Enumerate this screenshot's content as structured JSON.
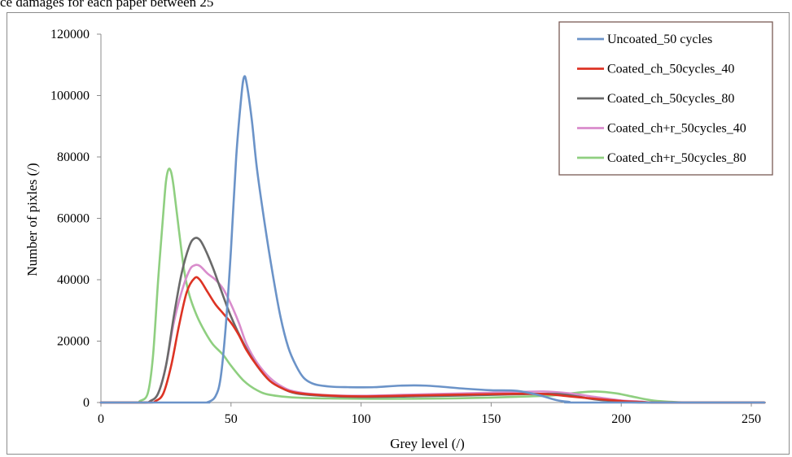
{
  "caption": "ce damages for each paper between 25",
  "chart_data": {
    "type": "line",
    "xlabel": "Grey level (/)",
    "ylabel": "Number of pixles (/)",
    "xlim": [
      0,
      255
    ],
    "ylim": [
      0,
      120000
    ],
    "xticks": [
      "0",
      "50",
      "100",
      "150",
      "200",
      "250"
    ],
    "yticks": [
      "0",
      "20000",
      "40000",
      "60000",
      "80000",
      "100000",
      "120000"
    ],
    "grid": false,
    "legend_position": "top-right",
    "series": [
      {
        "name": "Uncoated_50 cycles",
        "color": "#6b93c8",
        "points": [
          [
            0,
            0
          ],
          [
            38,
            0
          ],
          [
            41,
            100
          ],
          [
            44,
            2000
          ],
          [
            46,
            8000
          ],
          [
            48,
            25000
          ],
          [
            50,
            50000
          ],
          [
            52,
            80000
          ],
          [
            54,
            100000
          ],
          [
            55,
            106000
          ],
          [
            56,
            104000
          ],
          [
            58,
            92000
          ],
          [
            60,
            76000
          ],
          [
            63,
            58000
          ],
          [
            66,
            42000
          ],
          [
            69,
            28000
          ],
          [
            72,
            18000
          ],
          [
            75,
            12000
          ],
          [
            78,
            8000
          ],
          [
            82,
            6000
          ],
          [
            88,
            5200
          ],
          [
            95,
            5000
          ],
          [
            105,
            5000
          ],
          [
            115,
            5500
          ],
          [
            125,
            5500
          ],
          [
            140,
            4500
          ],
          [
            150,
            4000
          ],
          [
            160,
            3800
          ],
          [
            168,
            2500
          ],
          [
            175,
            800
          ],
          [
            180,
            200
          ],
          [
            185,
            0
          ],
          [
            255,
            0
          ]
        ]
      },
      {
        "name": "Coated_ch_50cycles_40",
        "color": "#dd3324",
        "points": [
          [
            0,
            0
          ],
          [
            18,
            0
          ],
          [
            21,
            500
          ],
          [
            24,
            3000
          ],
          [
            27,
            12000
          ],
          [
            30,
            25000
          ],
          [
            33,
            36000
          ],
          [
            36,
            40500
          ],
          [
            38,
            40000
          ],
          [
            41,
            36000
          ],
          [
            44,
            32000
          ],
          [
            47,
            29000
          ],
          [
            50,
            26000
          ],
          [
            53,
            22000
          ],
          [
            56,
            17000
          ],
          [
            60,
            12000
          ],
          [
            65,
            7000
          ],
          [
            70,
            4500
          ],
          [
            75,
            3200
          ],
          [
            85,
            2400
          ],
          [
            100,
            2000
          ],
          [
            120,
            2300
          ],
          [
            140,
            2600
          ],
          [
            155,
            2800
          ],
          [
            170,
            2800
          ],
          [
            180,
            2000
          ],
          [
            190,
            1200
          ],
          [
            200,
            500
          ],
          [
            208,
            200
          ],
          [
            215,
            0
          ],
          [
            255,
            0
          ]
        ]
      },
      {
        "name": "Coated_ch_50cycles_80",
        "color": "#6a6a6a",
        "points": [
          [
            0,
            0
          ],
          [
            16,
            0
          ],
          [
            19,
            500
          ],
          [
            22,
            3000
          ],
          [
            25,
            12000
          ],
          [
            28,
            28000
          ],
          [
            31,
            42000
          ],
          [
            34,
            51000
          ],
          [
            36,
            53500
          ],
          [
            38,
            53000
          ],
          [
            40,
            50000
          ],
          [
            43,
            44000
          ],
          [
            46,
            37000
          ],
          [
            50,
            28000
          ],
          [
            55,
            19000
          ],
          [
            60,
            12000
          ],
          [
            65,
            7000
          ],
          [
            70,
            4500
          ],
          [
            75,
            3000
          ],
          [
            85,
            2200
          ],
          [
            100,
            1800
          ],
          [
            120,
            2000
          ],
          [
            140,
            2300
          ],
          [
            160,
            2700
          ],
          [
            175,
            2800
          ],
          [
            183,
            2000
          ],
          [
            190,
            1000
          ],
          [
            200,
            300
          ],
          [
            210,
            0
          ],
          [
            255,
            0
          ]
        ]
      },
      {
        "name": "Coated_ch+r_50cycles_40",
        "color": "#d98ccc",
        "points": [
          [
            0,
            0
          ],
          [
            16,
            0
          ],
          [
            19,
            500
          ],
          [
            22,
            3000
          ],
          [
            25,
            12000
          ],
          [
            28,
            26000
          ],
          [
            31,
            36000
          ],
          [
            34,
            43000
          ],
          [
            36,
            44700
          ],
          [
            38,
            44500
          ],
          [
            41,
            42000
          ],
          [
            44,
            40000
          ],
          [
            47,
            37000
          ],
          [
            50,
            32000
          ],
          [
            53,
            26000
          ],
          [
            56,
            19000
          ],
          [
            60,
            13000
          ],
          [
            65,
            8000
          ],
          [
            70,
            5000
          ],
          [
            75,
            3500
          ],
          [
            85,
            2500
          ],
          [
            100,
            2200
          ],
          [
            120,
            2600
          ],
          [
            140,
            3000
          ],
          [
            160,
            3400
          ],
          [
            170,
            3600
          ],
          [
            180,
            3000
          ],
          [
            190,
            1800
          ],
          [
            200,
            700
          ],
          [
            208,
            300
          ],
          [
            215,
            0
          ],
          [
            255,
            0
          ]
        ]
      },
      {
        "name": "Coated_ch+r_50cycles_80",
        "color": "#8fcf80",
        "points": [
          [
            0,
            0
          ],
          [
            13,
            0
          ],
          [
            15,
            500
          ],
          [
            18,
            3000
          ],
          [
            20,
            15000
          ],
          [
            22,
            40000
          ],
          [
            24,
            62000
          ],
          [
            25,
            72000
          ],
          [
            26,
            76000
          ],
          [
            27,
            75000
          ],
          [
            28,
            70000
          ],
          [
            30,
            56000
          ],
          [
            32,
            43000
          ],
          [
            34,
            35000
          ],
          [
            37,
            28000
          ],
          [
            40,
            23000
          ],
          [
            43,
            19000
          ],
          [
            47,
            15500
          ],
          [
            50,
            12000
          ],
          [
            55,
            7000
          ],
          [
            60,
            4000
          ],
          [
            65,
            2500
          ],
          [
            75,
            1600
          ],
          [
            90,
            1300
          ],
          [
            110,
            1200
          ],
          [
            130,
            1300
          ],
          [
            150,
            1600
          ],
          [
            165,
            2000
          ],
          [
            175,
            2400
          ],
          [
            183,
            3200
          ],
          [
            190,
            3600
          ],
          [
            198,
            3000
          ],
          [
            205,
            1800
          ],
          [
            212,
            700
          ],
          [
            220,
            200
          ],
          [
            228,
            0
          ],
          [
            255,
            0
          ]
        ]
      }
    ]
  }
}
